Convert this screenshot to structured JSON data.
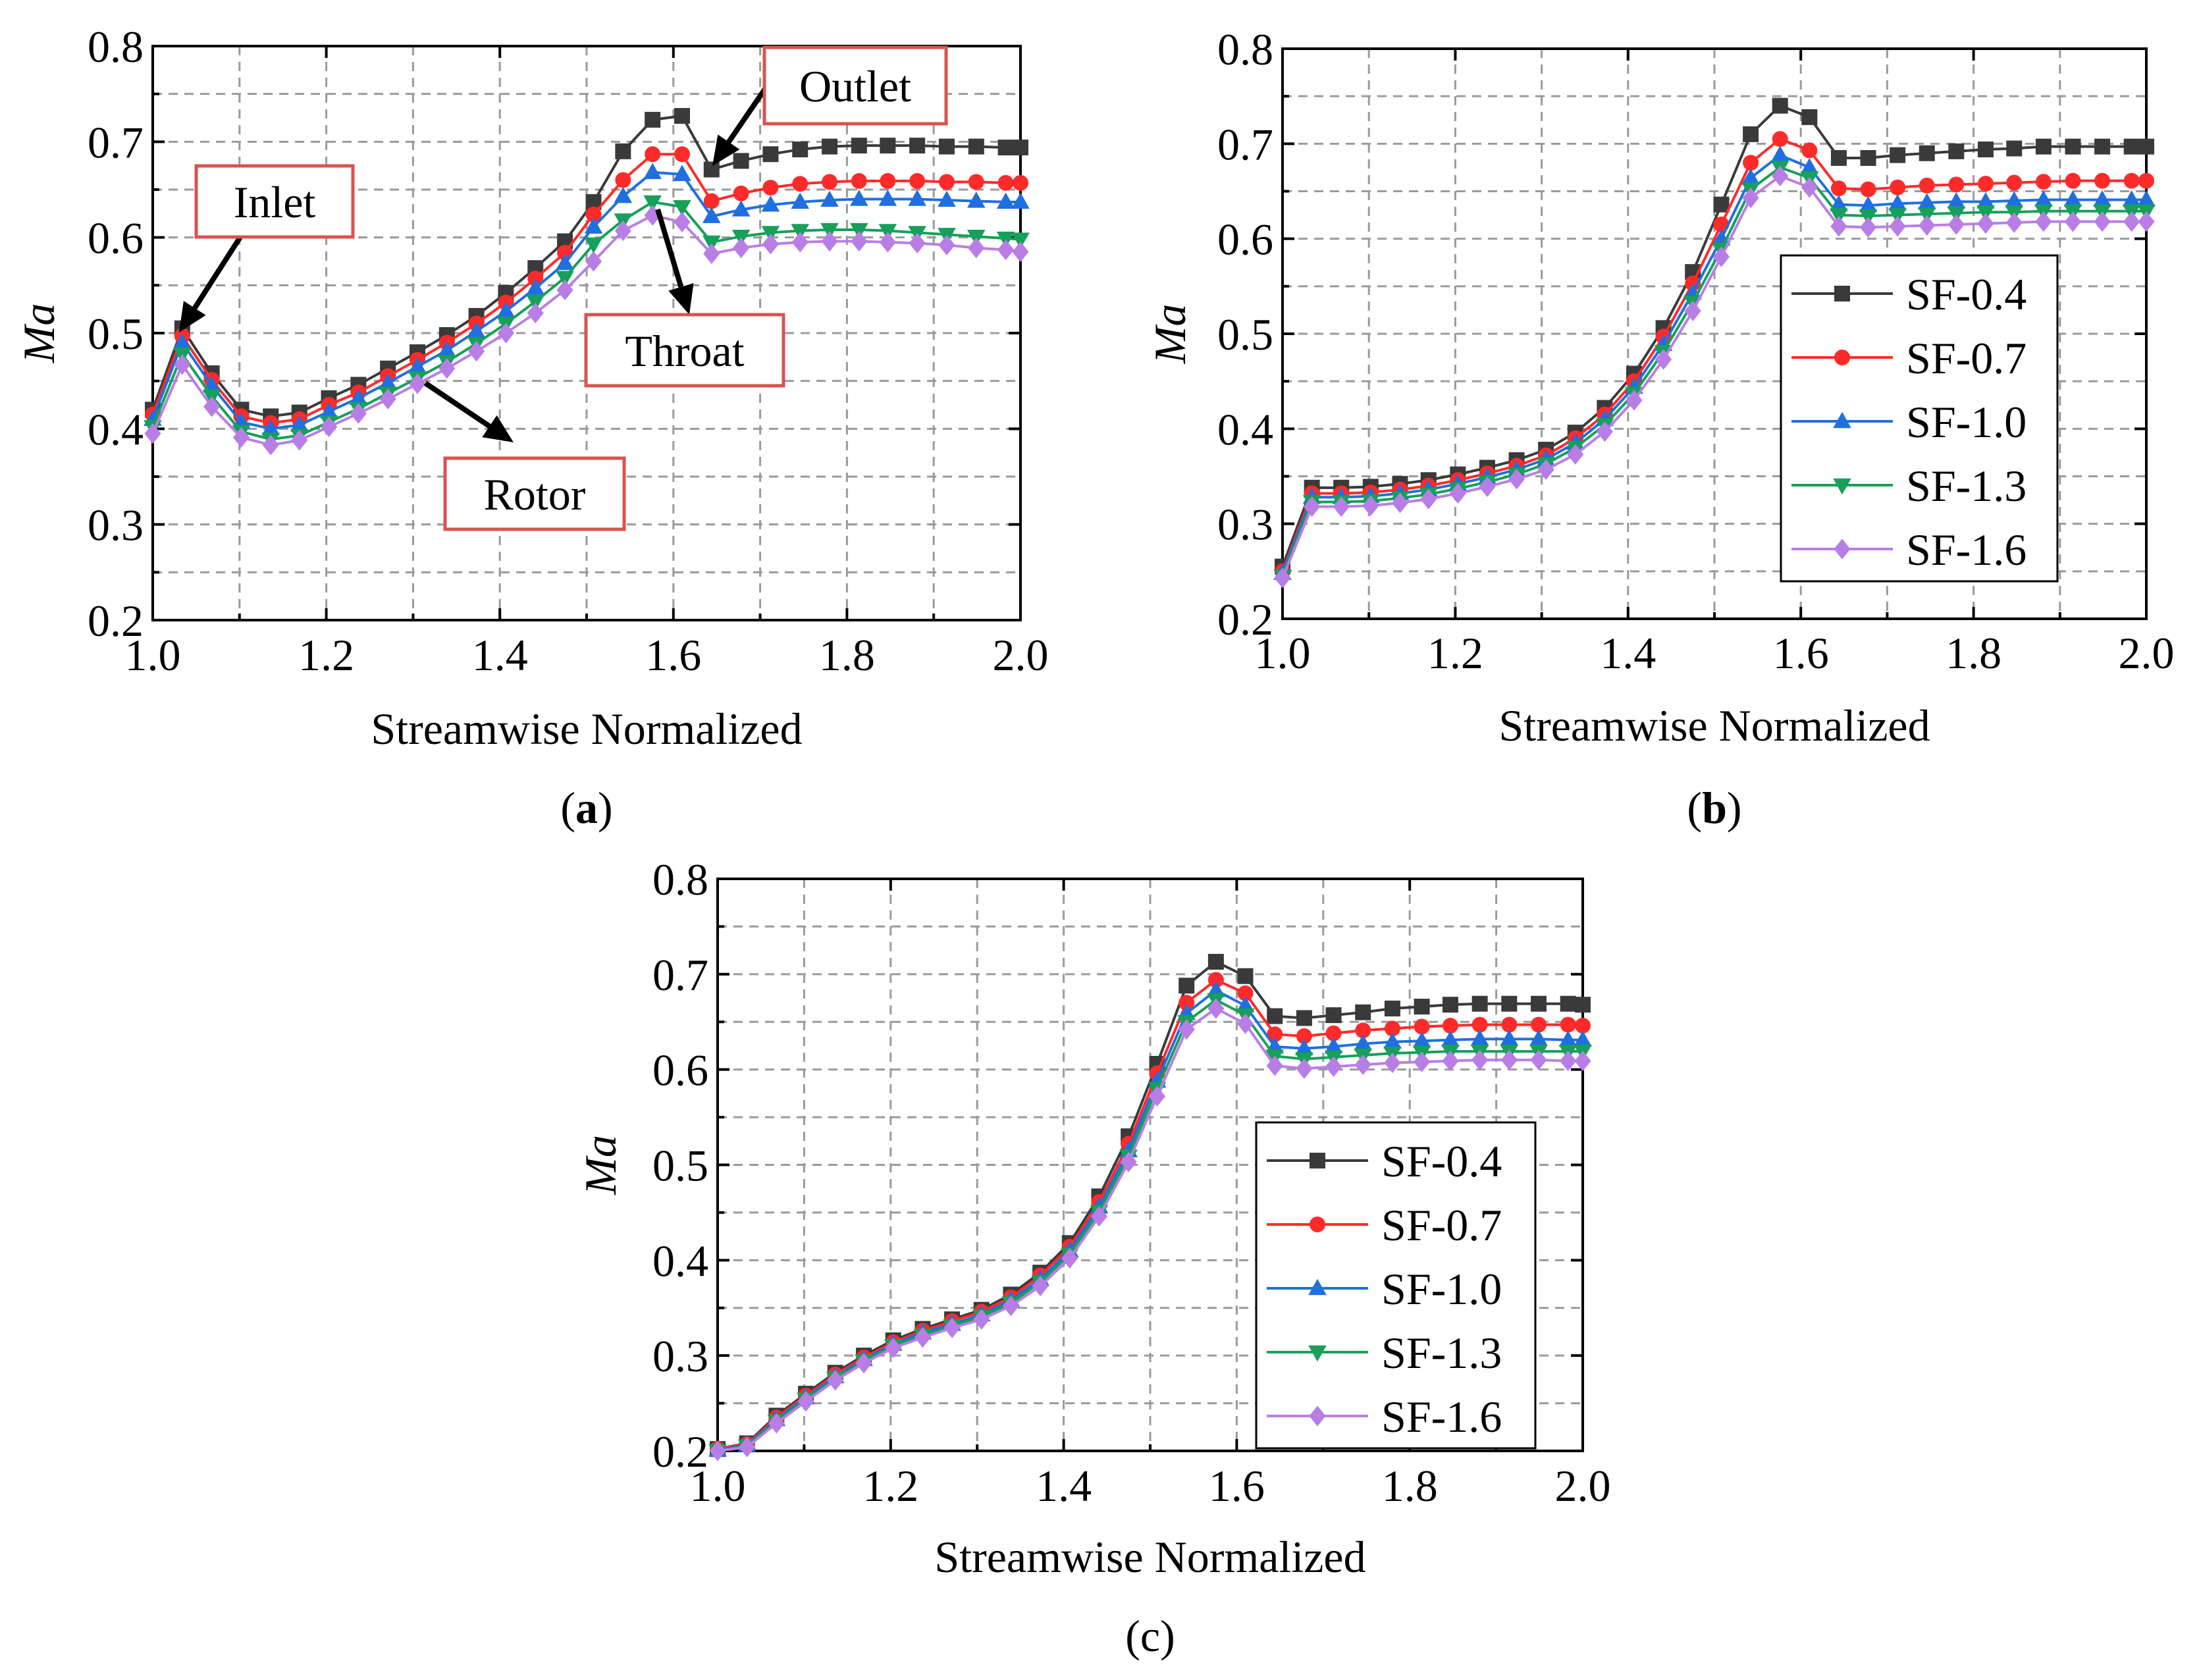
{
  "colors": {
    "SF-0.4": "#3a3a3a",
    "SF-0.7": "#ff2a2a",
    "SF-1.0": "#1f6fe0",
    "SF-1.3": "#16a05a",
    "SF-1.6": "#b97ee6"
  },
  "markers": {
    "SF-0.4": "square",
    "SF-0.7": "circle",
    "SF-1.0": "triangle-up",
    "SF-1.3": "triangle-down",
    "SF-1.6": "diamond"
  },
  "chart_data": [
    {
      "panel": "(a)",
      "panel_prefix": "(",
      "panel_letter": "a",
      "panel_suffix": ")",
      "type": "line",
      "xlabel": "Streamwise Normalized",
      "ylabel": "Ma",
      "xlim": [
        1.0,
        2.0
      ],
      "ylim": [
        0.2,
        0.8
      ],
      "xticks": [
        "1.0",
        "1.2",
        "1.4",
        "1.6",
        "1.8",
        "2.0"
      ],
      "yticks": [
        "0.2",
        "0.3",
        "0.4",
        "0.5",
        "0.6",
        "0.7",
        "0.8"
      ],
      "grid": true,
      "legend": "none",
      "x": [
        1.0,
        1.034,
        1.068,
        1.102,
        1.136,
        1.169,
        1.203,
        1.237,
        1.271,
        1.305,
        1.339,
        1.373,
        1.407,
        1.441,
        1.475,
        1.508,
        1.542,
        1.576,
        1.61,
        1.644,
        1.678,
        1.712,
        1.746,
        1.78,
        1.814,
        1.847,
        1.881,
        1.915,
        1.949,
        1.983,
        2.0
      ],
      "series": [
        {
          "name": "SF-0.4",
          "values": [
            0.42,
            0.505,
            0.458,
            0.42,
            0.413,
            0.417,
            0.432,
            0.446,
            0.463,
            0.48,
            0.498,
            0.518,
            0.542,
            0.568,
            0.596,
            0.637,
            0.69,
            0.723,
            0.727,
            0.671,
            0.68,
            0.687,
            0.692,
            0.695,
            0.696,
            0.696,
            0.696,
            0.695,
            0.695,
            0.694,
            0.694
          ]
        },
        {
          "name": "SF-0.7",
          "values": [
            0.415,
            0.497,
            0.451,
            0.413,
            0.406,
            0.41,
            0.425,
            0.438,
            0.455,
            0.472,
            0.49,
            0.51,
            0.532,
            0.557,
            0.584,
            0.624,
            0.66,
            0.687,
            0.687,
            0.638,
            0.646,
            0.652,
            0.656,
            0.658,
            0.659,
            0.659,
            0.659,
            0.658,
            0.658,
            0.657,
            0.657
          ]
        },
        {
          "name": "SF-1.0",
          "values": [
            0.41,
            0.49,
            0.445,
            0.407,
            0.4,
            0.404,
            0.418,
            0.432,
            0.448,
            0.465,
            0.482,
            0.502,
            0.523,
            0.547,
            0.573,
            0.611,
            0.643,
            0.668,
            0.666,
            0.622,
            0.629,
            0.634,
            0.637,
            0.639,
            0.64,
            0.64,
            0.64,
            0.639,
            0.638,
            0.637,
            0.637
          ]
        },
        {
          "name": "SF-1.3",
          "values": [
            0.402,
            0.478,
            0.434,
            0.397,
            0.389,
            0.393,
            0.407,
            0.421,
            0.437,
            0.453,
            0.47,
            0.489,
            0.51,
            0.533,
            0.558,
            0.593,
            0.618,
            0.637,
            0.632,
            0.595,
            0.601,
            0.605,
            0.607,
            0.608,
            0.608,
            0.607,
            0.605,
            0.603,
            0.601,
            0.599,
            0.598
          ]
        },
        {
          "name": "SF-1.6",
          "values": [
            0.395,
            0.467,
            0.423,
            0.391,
            0.383,
            0.388,
            0.402,
            0.416,
            0.431,
            0.447,
            0.463,
            0.481,
            0.5,
            0.521,
            0.545,
            0.575,
            0.607,
            0.623,
            0.616,
            0.583,
            0.589,
            0.593,
            0.595,
            0.596,
            0.596,
            0.595,
            0.594,
            0.592,
            0.589,
            0.587,
            0.585
          ]
        }
      ],
      "annotations": [
        {
          "id": "inlet",
          "label": "Inlet"
        },
        {
          "id": "outlet",
          "label": "Outlet"
        },
        {
          "id": "throat",
          "label": "Throat"
        },
        {
          "id": "rotor",
          "label": "Rotor"
        }
      ]
    },
    {
      "panel": "(b)",
      "panel_prefix": "(",
      "panel_letter": "b",
      "panel_suffix": ")",
      "type": "line",
      "xlabel": "Streamwise Normalized",
      "ylabel": "Ma",
      "xlim": [
        1.0,
        2.0
      ],
      "ylim": [
        0.2,
        0.8
      ],
      "xticks": [
        "1.0",
        "1.2",
        "1.4",
        "1.6",
        "1.8",
        "2.0"
      ],
      "yticks": [
        "0.2",
        "0.3",
        "0.4",
        "0.5",
        "0.6",
        "0.7",
        "0.8"
      ],
      "grid": true,
      "legend": "center-right",
      "x": [
        1.0,
        1.034,
        1.068,
        1.102,
        1.136,
        1.169,
        1.203,
        1.237,
        1.271,
        1.305,
        1.339,
        1.373,
        1.407,
        1.441,
        1.475,
        1.508,
        1.542,
        1.576,
        1.61,
        1.644,
        1.678,
        1.712,
        1.746,
        1.78,
        1.814,
        1.847,
        1.881,
        1.915,
        1.949,
        1.983,
        2.0
      ],
      "series": [
        {
          "name": "SF-0.4",
          "values": [
            0.255,
            0.338,
            0.338,
            0.339,
            0.342,
            0.346,
            0.352,
            0.359,
            0.367,
            0.378,
            0.396,
            0.422,
            0.458,
            0.506,
            0.565,
            0.636,
            0.71,
            0.74,
            0.728,
            0.685,
            0.685,
            0.688,
            0.69,
            0.692,
            0.694,
            0.695,
            0.697,
            0.697,
            0.697,
            0.697,
            0.697
          ]
        },
        {
          "name": "SF-0.7",
          "values": [
            0.25,
            0.332,
            0.332,
            0.333,
            0.336,
            0.34,
            0.346,
            0.353,
            0.361,
            0.372,
            0.39,
            0.415,
            0.45,
            0.497,
            0.553,
            0.615,
            0.68,
            0.705,
            0.693,
            0.653,
            0.652,
            0.654,
            0.656,
            0.657,
            0.658,
            0.659,
            0.66,
            0.661,
            0.661,
            0.661,
            0.661
          ]
        },
        {
          "name": "SF-1.0",
          "values": [
            0.248,
            0.328,
            0.328,
            0.329,
            0.332,
            0.336,
            0.342,
            0.349,
            0.357,
            0.368,
            0.385,
            0.41,
            0.444,
            0.489,
            0.543,
            0.6,
            0.664,
            0.688,
            0.675,
            0.636,
            0.635,
            0.637,
            0.638,
            0.639,
            0.639,
            0.64,
            0.641,
            0.641,
            0.641,
            0.641,
            0.641
          ]
        },
        {
          "name": "SF-1.3",
          "values": [
            0.245,
            0.323,
            0.323,
            0.324,
            0.327,
            0.331,
            0.337,
            0.344,
            0.352,
            0.363,
            0.38,
            0.404,
            0.437,
            0.481,
            0.533,
            0.589,
            0.652,
            0.675,
            0.664,
            0.625,
            0.624,
            0.625,
            0.626,
            0.627,
            0.628,
            0.628,
            0.629,
            0.629,
            0.629,
            0.629,
            0.629
          ]
        },
        {
          "name": "SF-1.6",
          "values": [
            0.243,
            0.318,
            0.318,
            0.319,
            0.322,
            0.326,
            0.332,
            0.339,
            0.347,
            0.357,
            0.373,
            0.397,
            0.43,
            0.473,
            0.524,
            0.581,
            0.643,
            0.666,
            0.654,
            0.613,
            0.612,
            0.613,
            0.614,
            0.615,
            0.616,
            0.617,
            0.618,
            0.618,
            0.618,
            0.618,
            0.618
          ]
        }
      ]
    },
    {
      "panel": "(c)",
      "panel_prefix": "",
      "panel_letter": "(c)",
      "panel_suffix": "",
      "type": "line",
      "xlabel": "Streamwise Normalized",
      "ylabel": "Ma",
      "xlim": [
        1.0,
        2.0
      ],
      "ylim": [
        0.2,
        0.8
      ],
      "xticks": [
        "1.0",
        "1.2",
        "1.4",
        "1.6",
        "1.8",
        "2.0"
      ],
      "yticks": [
        "0.2",
        "0.3",
        "0.4",
        "0.5",
        "0.6",
        "0.7",
        "0.8"
      ],
      "grid": true,
      "legend": "center-right",
      "x": [
        1.0,
        1.034,
        1.068,
        1.102,
        1.136,
        1.169,
        1.203,
        1.237,
        1.271,
        1.305,
        1.339,
        1.373,
        1.407,
        1.441,
        1.475,
        1.508,
        1.542,
        1.576,
        1.61,
        1.644,
        1.678,
        1.712,
        1.746,
        1.78,
        1.814,
        1.847,
        1.881,
        1.915,
        1.949,
        1.983,
        2.0
      ],
      "series": [
        {
          "name": "SF-0.4",
          "values": [
            0.202,
            0.208,
            0.237,
            0.26,
            0.282,
            0.3,
            0.316,
            0.328,
            0.338,
            0.348,
            0.364,
            0.387,
            0.418,
            0.467,
            0.53,
            0.606,
            0.688,
            0.713,
            0.698,
            0.656,
            0.654,
            0.657,
            0.66,
            0.664,
            0.666,
            0.668,
            0.669,
            0.669,
            0.669,
            0.669,
            0.668
          ]
        },
        {
          "name": "SF-0.7",
          "values": [
            0.202,
            0.207,
            0.235,
            0.258,
            0.28,
            0.298,
            0.314,
            0.326,
            0.336,
            0.346,
            0.361,
            0.384,
            0.414,
            0.461,
            0.522,
            0.596,
            0.67,
            0.694,
            0.68,
            0.637,
            0.635,
            0.638,
            0.641,
            0.643,
            0.645,
            0.646,
            0.647,
            0.647,
            0.647,
            0.647,
            0.646
          ]
        },
        {
          "name": "SF-1.0",
          "values": [
            0.201,
            0.206,
            0.233,
            0.256,
            0.278,
            0.296,
            0.312,
            0.324,
            0.333,
            0.343,
            0.358,
            0.38,
            0.41,
            0.456,
            0.515,
            0.588,
            0.659,
            0.683,
            0.667,
            0.624,
            0.622,
            0.624,
            0.627,
            0.629,
            0.63,
            0.631,
            0.632,
            0.632,
            0.632,
            0.631,
            0.631
          ]
        },
        {
          "name": "SF-1.3",
          "values": [
            0.2,
            0.205,
            0.231,
            0.254,
            0.276,
            0.294,
            0.31,
            0.321,
            0.331,
            0.341,
            0.355,
            0.377,
            0.406,
            0.451,
            0.509,
            0.58,
            0.65,
            0.673,
            0.657,
            0.614,
            0.611,
            0.613,
            0.615,
            0.617,
            0.618,
            0.619,
            0.619,
            0.619,
            0.619,
            0.619,
            0.619
          ]
        },
        {
          "name": "SF-1.6",
          "values": [
            0.2,
            0.204,
            0.229,
            0.252,
            0.274,
            0.292,
            0.308,
            0.319,
            0.329,
            0.338,
            0.352,
            0.373,
            0.402,
            0.446,
            0.503,
            0.572,
            0.642,
            0.664,
            0.648,
            0.604,
            0.601,
            0.603,
            0.605,
            0.607,
            0.608,
            0.609,
            0.61,
            0.61,
            0.61,
            0.609,
            0.609
          ]
        }
      ]
    }
  ]
}
